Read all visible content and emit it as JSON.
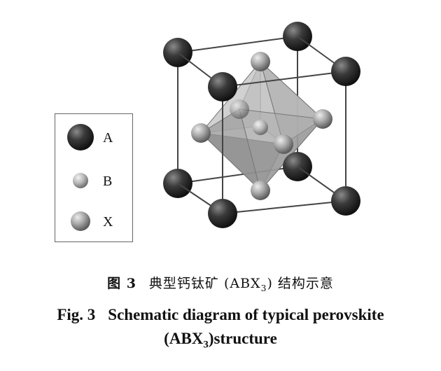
{
  "legend": {
    "items": [
      {
        "symbol": "A",
        "label": "A"
      },
      {
        "symbol": "B",
        "label": "B"
      },
      {
        "symbol": "X",
        "label": "X"
      }
    ]
  },
  "caption": {
    "zh_label": "图 3",
    "zh_text_pre": "典型钙钛矿 (ABX",
    "zh_sub": "3",
    "zh_text_post": ") 结构示意",
    "en_label": "Fig. 3",
    "en_line1": "Schematic diagram of typical perovskite",
    "en_line2_pre": "(ABX",
    "en_line2_sub": "3",
    "en_line2_post": ")structure"
  },
  "colors": {
    "atom_A": "#2e2e2e",
    "atom_B": "#a5a5a5",
    "atom_X": "#9a9a9a",
    "octahedron": "#8c8c8c",
    "cube_edge": "#444444"
  }
}
